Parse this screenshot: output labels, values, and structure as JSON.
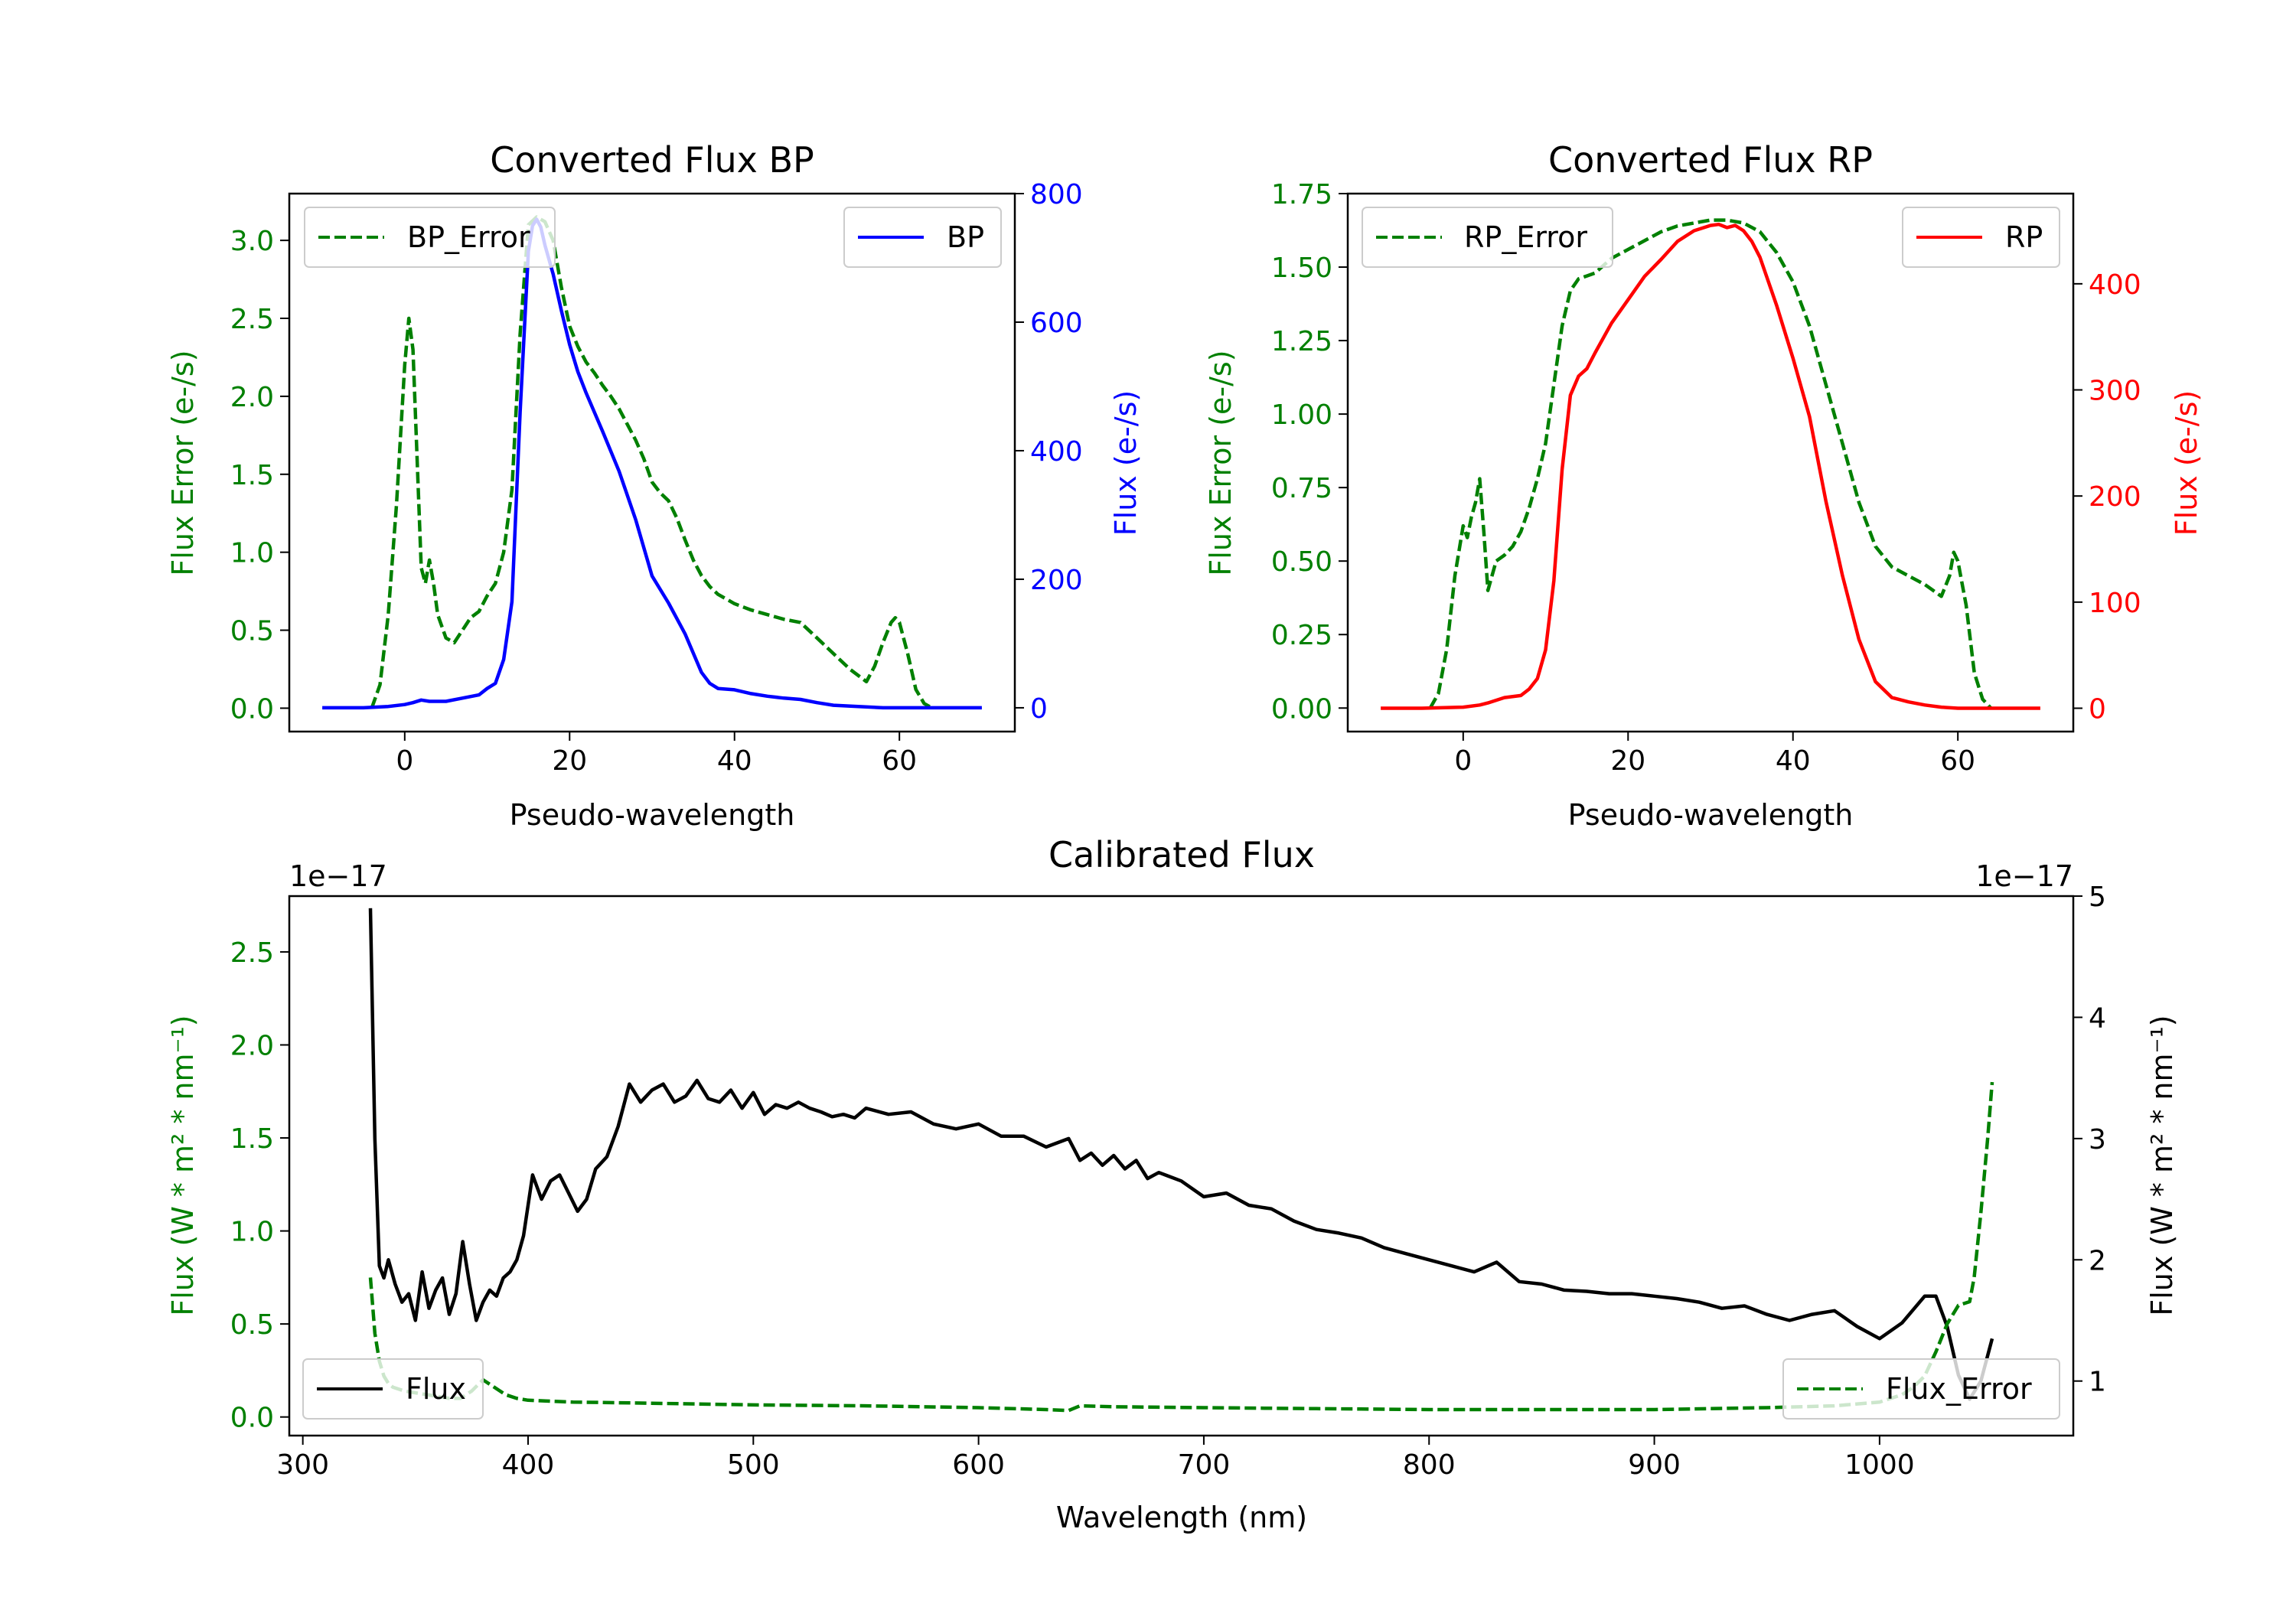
{
  "colors": {
    "error": "#008000",
    "bp": "#0000ff",
    "rp": "#ff0000",
    "flux": "#000000"
  },
  "chart_data": [
    {
      "id": "bp",
      "type": "line",
      "title": "Converted Flux BP",
      "xlabel": "Pseudo-wavelength",
      "ylabel_left": "Flux Error (e-/s)",
      "ylabel_right": "Flux (e-/s)",
      "xlim": [
        -14,
        74
      ],
      "ylim_left": [
        -0.15,
        3.3
      ],
      "ylim_right": [
        -37,
        800
      ],
      "xticks": [
        0,
        20,
        40,
        60
      ],
      "yticks_left": [
        0.0,
        0.5,
        1.0,
        1.5,
        2.0,
        2.5,
        3.0
      ],
      "yticks_left_labels": [
        "0.0",
        "0.5",
        "1.0",
        "1.5",
        "2.0",
        "2.5",
        "3.0"
      ],
      "yticks_right": [
        0,
        200,
        400,
        600,
        800
      ],
      "yticks_right_labels": [
        "0",
        "200",
        "400",
        "600",
        "800"
      ],
      "legend_left": "BP_Error",
      "legend_right": "BP",
      "series": [
        {
          "name": "BP_Error",
          "axis": "left",
          "style": "dashed",
          "color": "#008000",
          "x": [
            -4,
            -3,
            -2,
            -1,
            0,
            0.5,
            1,
            1.5,
            2,
            2.5,
            3,
            3.5,
            4,
            5,
            6,
            7,
            8,
            9,
            10,
            11,
            12,
            13,
            14,
            15,
            16,
            17,
            18,
            19,
            20,
            21,
            22,
            23,
            24,
            25,
            26,
            27,
            28,
            29,
            30,
            31,
            32,
            33,
            34,
            35,
            36,
            37,
            38,
            39,
            40,
            42,
            44,
            46,
            48,
            50,
            52,
            54,
            56,
            57,
            58,
            59,
            59.5,
            60,
            61,
            62,
            63,
            64
          ],
          "y": [
            0.0,
            0.15,
            0.6,
            1.3,
            2.2,
            2.5,
            2.3,
            1.6,
            0.9,
            0.8,
            0.95,
            0.8,
            0.6,
            0.45,
            0.42,
            0.5,
            0.58,
            0.62,
            0.72,
            0.8,
            1.0,
            1.4,
            2.4,
            3.1,
            3.15,
            3.12,
            3.0,
            2.7,
            2.45,
            2.32,
            2.22,
            2.15,
            2.07,
            2.0,
            1.92,
            1.82,
            1.72,
            1.6,
            1.45,
            1.38,
            1.33,
            1.22,
            1.08,
            0.95,
            0.85,
            0.78,
            0.73,
            0.7,
            0.67,
            0.63,
            0.6,
            0.57,
            0.55,
            0.45,
            0.35,
            0.25,
            0.17,
            0.27,
            0.42,
            0.55,
            0.58,
            0.55,
            0.35,
            0.12,
            0.03,
            0.0
          ]
        },
        {
          "name": "BP",
          "axis": "right",
          "style": "solid",
          "color": "#0000ff",
          "x": [
            -10,
            -5,
            -2,
            0,
            1,
            2,
            3,
            5,
            7,
            9,
            10,
            11,
            12,
            13,
            14,
            15,
            15.5,
            16,
            16.5,
            17,
            18,
            19,
            20,
            21,
            22,
            24,
            26,
            28,
            30,
            32,
            34,
            36,
            37,
            38,
            40,
            42,
            44,
            46,
            48,
            50,
            52,
            55,
            58,
            60,
            62,
            65,
            70
          ],
          "y": [
            0,
            0,
            2,
            5,
            8,
            12,
            10,
            10,
            15,
            20,
            30,
            38,
            75,
            165,
            460,
            710,
            750,
            760,
            748,
            720,
            675,
            618,
            565,
            523,
            490,
            430,
            368,
            293,
            205,
            163,
            115,
            55,
            38,
            30,
            28,
            22,
            18,
            15,
            13,
            8,
            4,
            2,
            0,
            0,
            0,
            0,
            0
          ]
        }
      ]
    },
    {
      "id": "rp",
      "type": "line",
      "title": "Converted Flux RP",
      "xlabel": "Pseudo-wavelength",
      "ylabel_left": "Flux Error (e-/s)",
      "ylabel_right": "Flux (e-/s)",
      "xlim": [
        -14,
        74
      ],
      "ylim_left": [
        -0.08,
        1.75
      ],
      "ylim_right": [
        -22,
        485
      ],
      "xticks": [
        0,
        20,
        40,
        60
      ],
      "yticks_left": [
        0.0,
        0.25,
        0.5,
        0.75,
        1.0,
        1.25,
        1.5,
        1.75
      ],
      "yticks_left_labels": [
        "0.00",
        "0.25",
        "0.50",
        "0.75",
        "1.00",
        "1.25",
        "1.50",
        "1.75"
      ],
      "yticks_right": [
        0,
        100,
        200,
        300,
        400
      ],
      "yticks_right_labels": [
        "0",
        "100",
        "200",
        "300",
        "400"
      ],
      "legend_left": "RP_Error",
      "legend_right": "RP",
      "series": [
        {
          "name": "RP_Error",
          "axis": "left",
          "style": "dashed",
          "color": "#008000",
          "x": [
            -4,
            -3,
            -2,
            -1,
            0,
            0.5,
            1,
            1.5,
            2,
            2.5,
            3,
            3.5,
            4,
            5,
            6,
            7,
            8,
            9,
            10,
            11,
            12,
            13,
            14,
            15,
            16,
            18,
            20,
            22,
            24,
            26,
            28,
            30,
            32,
            34,
            36,
            38,
            40,
            42,
            44,
            46,
            48,
            50,
            52,
            54,
            56,
            57,
            58,
            59,
            59.5,
            60,
            61,
            62,
            63,
            64
          ],
          "y": [
            0.0,
            0.05,
            0.2,
            0.45,
            0.62,
            0.58,
            0.65,
            0.7,
            0.78,
            0.6,
            0.4,
            0.45,
            0.5,
            0.52,
            0.55,
            0.6,
            0.68,
            0.78,
            0.9,
            1.1,
            1.3,
            1.42,
            1.46,
            1.47,
            1.48,
            1.53,
            1.56,
            1.59,
            1.62,
            1.64,
            1.65,
            1.66,
            1.66,
            1.65,
            1.62,
            1.55,
            1.45,
            1.3,
            1.1,
            0.9,
            0.7,
            0.55,
            0.48,
            0.45,
            0.42,
            0.4,
            0.38,
            0.45,
            0.53,
            0.5,
            0.35,
            0.12,
            0.03,
            0.0
          ]
        },
        {
          "name": "RP",
          "axis": "right",
          "style": "solid",
          "color": "#ff0000",
          "x": [
            -10,
            -5,
            0,
            2,
            3,
            5,
            7,
            8,
            9,
            10,
            11,
            12,
            13,
            14,
            15,
            16,
            18,
            20,
            22,
            24,
            26,
            28,
            30,
            31,
            32,
            33,
            34,
            35,
            36,
            38,
            40,
            42,
            44,
            46,
            48,
            50,
            52,
            54,
            56,
            58,
            60,
            65,
            70
          ],
          "y": [
            0,
            0,
            1,
            3,
            5,
            10,
            12,
            18,
            28,
            55,
            120,
            225,
            295,
            313,
            320,
            335,
            363,
            385,
            407,
            423,
            440,
            450,
            455,
            456,
            453,
            455,
            450,
            440,
            425,
            380,
            330,
            275,
            195,
            125,
            65,
            25,
            10,
            6,
            3,
            1,
            0,
            0,
            0
          ]
        }
      ]
    },
    {
      "id": "cal",
      "type": "line",
      "title": "Calibrated Flux",
      "xlabel": "Wavelength (nm)",
      "ylabel_left": "Flux (W * m² * nm⁻¹)",
      "ylabel_right": "Flux (W * m² * nm⁻¹)",
      "offset_left": "1e−17",
      "offset_right": "1e−17",
      "xlim": [
        294,
        1086
      ],
      "ylim_left": [
        -0.1,
        2.8
      ],
      "ylim_right": [
        0.55,
        5.0
      ],
      "xticks": [
        300,
        400,
        500,
        600,
        700,
        800,
        900,
        1000
      ],
      "yticks_left": [
        0.0,
        0.5,
        1.0,
        1.5,
        2.0,
        2.5
      ],
      "yticks_left_labels": [
        "0.0",
        "0.5",
        "1.0",
        "1.5",
        "2.0",
        "2.5"
      ],
      "yticks_right": [
        1,
        2,
        3,
        4,
        5
      ],
      "yticks_right_labels": [
        "1",
        "2",
        "3",
        "4",
        "5"
      ],
      "legend_left": "Flux",
      "legend_right": "Flux_Error",
      "series": [
        {
          "name": "Flux",
          "axis": "right",
          "style": "solid",
          "color": "#000000",
          "x": [
            330,
            332,
            334,
            336,
            338,
            341,
            344,
            347,
            350,
            353,
            356,
            359,
            362,
            365,
            368,
            371,
            374,
            377,
            380,
            383,
            386,
            389,
            392,
            395,
            398,
            402,
            406,
            410,
            414,
            418,
            422,
            426,
            430,
            435,
            440,
            445,
            450,
            455,
            460,
            465,
            470,
            475,
            480,
            485,
            490,
            495,
            500,
            505,
            510,
            515,
            520,
            525,
            530,
            535,
            540,
            545,
            550,
            560,
            570,
            580,
            590,
            600,
            610,
            620,
            630,
            640,
            645,
            650,
            655,
            660,
            665,
            670,
            675,
            680,
            690,
            700,
            710,
            720,
            730,
            740,
            750,
            760,
            770,
            780,
            790,
            800,
            810,
            820,
            830,
            840,
            850,
            860,
            870,
            880,
            890,
            900,
            910,
            920,
            930,
            940,
            950,
            960,
            970,
            980,
            990,
            1000,
            1010,
            1020,
            1025,
            1030,
            1035,
            1040,
            1045,
            1050
          ],
          "y": [
            4.9,
            3.0,
            1.95,
            1.85,
            2.0,
            1.8,
            1.65,
            1.72,
            1.5,
            1.9,
            1.6,
            1.75,
            1.85,
            1.55,
            1.72,
            2.15,
            1.8,
            1.5,
            1.65,
            1.75,
            1.7,
            1.85,
            1.9,
            2.0,
            2.2,
            2.7,
            2.5,
            2.65,
            2.7,
            2.55,
            2.4,
            2.5,
            2.75,
            2.85,
            3.1,
            3.45,
            3.3,
            3.4,
            3.45,
            3.3,
            3.35,
            3.48,
            3.33,
            3.3,
            3.4,
            3.25,
            3.38,
            3.2,
            3.28,
            3.25,
            3.3,
            3.25,
            3.22,
            3.18,
            3.2,
            3.17,
            3.25,
            3.2,
            3.22,
            3.12,
            3.08,
            3.12,
            3.02,
            3.02,
            2.93,
            3.0,
            2.82,
            2.88,
            2.78,
            2.86,
            2.75,
            2.82,
            2.67,
            2.72,
            2.65,
            2.52,
            2.55,
            2.45,
            2.42,
            2.32,
            2.25,
            2.22,
            2.18,
            2.1,
            2.05,
            2.0,
            1.95,
            1.9,
            1.98,
            1.82,
            1.8,
            1.75,
            1.74,
            1.72,
            1.72,
            1.7,
            1.68,
            1.65,
            1.6,
            1.62,
            1.55,
            1.5,
            1.55,
            1.58,
            1.45,
            1.35,
            1.48,
            1.7,
            1.7,
            1.45,
            1.05,
            0.85,
            1.0,
            1.35
          ]
        },
        {
          "name": "Flux_Error",
          "axis": "left",
          "style": "dashed",
          "color": "#008000",
          "x": [
            330,
            332,
            334,
            336,
            338,
            340,
            345,
            350,
            355,
            360,
            365,
            370,
            375,
            380,
            385,
            390,
            395,
            400,
            420,
            450,
            500,
            550,
            600,
            630,
            640,
            645,
            660,
            700,
            750,
            800,
            850,
            900,
            950,
            980,
            1000,
            1010,
            1015,
            1020,
            1025,
            1030,
            1035,
            1040,
            1042,
            1045,
            1048,
            1050
          ],
          "y": [
            0.75,
            0.45,
            0.3,
            0.22,
            0.18,
            0.16,
            0.14,
            0.13,
            0.12,
            0.11,
            0.1,
            0.1,
            0.14,
            0.2,
            0.16,
            0.12,
            0.1,
            0.09,
            0.08,
            0.075,
            0.065,
            0.06,
            0.05,
            0.04,
            0.035,
            0.06,
            0.055,
            0.05,
            0.045,
            0.04,
            0.04,
            0.04,
            0.05,
            0.06,
            0.08,
            0.12,
            0.16,
            0.22,
            0.35,
            0.5,
            0.6,
            0.62,
            0.75,
            1.1,
            1.5,
            1.8
          ]
        }
      ]
    }
  ]
}
